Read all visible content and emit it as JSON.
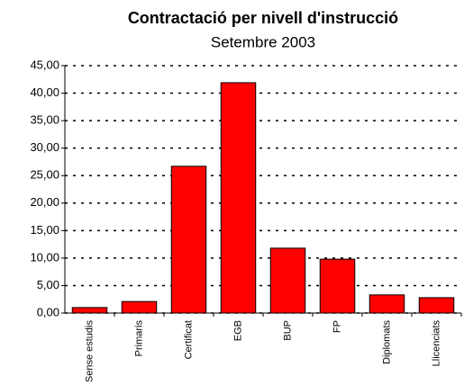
{
  "chart_data": {
    "type": "bar",
    "title": "Contractació per nivell d'instrucció",
    "subtitle": "Setembre 2003",
    "categories": [
      "Sense estudis",
      "Primaris",
      "Certificat",
      "EGB",
      "BUP",
      "FP",
      "Diplomats",
      "Llicenciats"
    ],
    "values": [
      1.0,
      2.1,
      26.7,
      41.9,
      11.8,
      9.8,
      3.3,
      2.8
    ],
    "color": "#ff0000",
    "ylim": [
      0,
      45
    ],
    "yticks": [
      {
        "value": 0,
        "label": "0,00"
      },
      {
        "value": 5,
        "label": "5,00"
      },
      {
        "value": 10,
        "label": "10,00"
      },
      {
        "value": 15,
        "label": "15,00"
      },
      {
        "value": 20,
        "label": "20,00"
      },
      {
        "value": 25,
        "label": "25,00"
      },
      {
        "value": 30,
        "label": "30,00"
      },
      {
        "value": 35,
        "label": "35,00"
      },
      {
        "value": 40,
        "label": "40,00"
      },
      {
        "value": 45,
        "label": "45,00"
      }
    ],
    "grid": true
  }
}
